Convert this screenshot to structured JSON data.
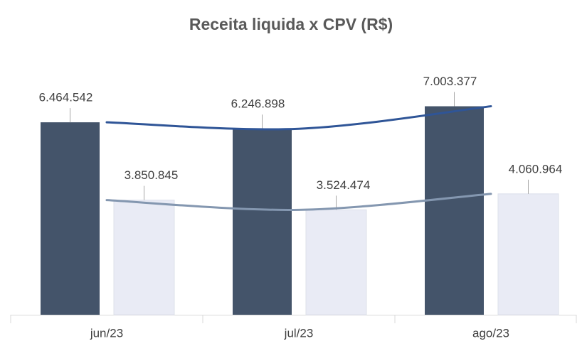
{
  "chart_data": {
    "type": "bar",
    "title": "Receita liquida x CPV (R$)",
    "categories": [
      "jun/23",
      "jul/23",
      "ago/23"
    ],
    "series": [
      {
        "color": "#44546a",
        "values": [
          6464542,
          6246898,
          7003377
        ],
        "value_labels": [
          "6.464.542",
          "6.246.898",
          "7.003.377"
        ],
        "trend_color": "#2f5597"
      },
      {
        "color": "#e9ebf5",
        "values": [
          3850845,
          3524474,
          4060964
        ],
        "value_labels": [
          "3.850.845",
          "3.524.474",
          "4.060.964"
        ],
        "trend_color": "#8497b0"
      }
    ],
    "ylim": [
      0,
      10000000
    ],
    "trendline": true,
    "grid": false
  }
}
